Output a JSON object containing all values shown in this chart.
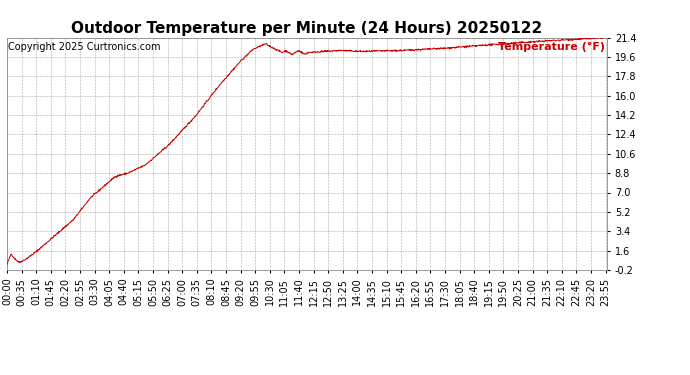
{
  "title": "Outdoor Temperature per Minute (24 Hours) 20250122",
  "copyright": "Copyright 2025 Curtronics.com",
  "legend_label": "Temperature (°F)",
  "line_color": "#cc0000",
  "legend_color": "#cc0000",
  "copyright_color": "#000000",
  "bg_color": "#ffffff",
  "grid_color": "#aaaaaa",
  "title_fontsize": 11,
  "copyright_fontsize": 7,
  "legend_fontsize": 8,
  "tick_fontsize": 7,
  "ylim": [
    -0.2,
    21.4
  ],
  "yticks": [
    -0.2,
    1.6,
    3.4,
    5.2,
    7.0,
    8.8,
    10.6,
    12.4,
    14.2,
    16.0,
    17.8,
    19.6,
    21.4
  ],
  "xtick_interval_minutes": 35,
  "total_minutes": 1440
}
